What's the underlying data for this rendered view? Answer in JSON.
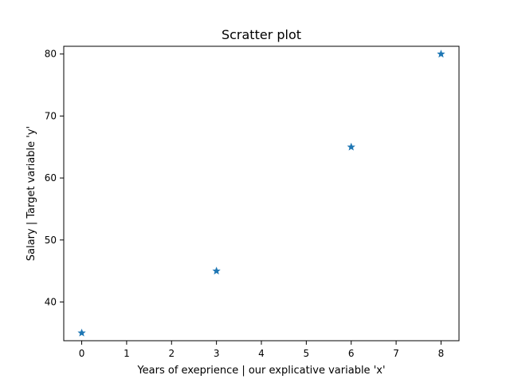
{
  "chart_data": {
    "type": "scatter",
    "title": "Scratter plot",
    "xlabel": "Years of exeprience |  our explicative variable 'x'",
    "ylabel": "Salary | Target variable 'y'",
    "xlim": [
      -0.4,
      8.4
    ],
    "ylim": [
      33.75,
      81.25
    ],
    "xticks": [
      0,
      1,
      2,
      3,
      4,
      5,
      6,
      7,
      8
    ],
    "yticks": [
      40,
      50,
      60,
      70,
      80
    ],
    "grid": false,
    "marker": "star",
    "series": [
      {
        "points": [
          {
            "x": 0,
            "y": 35
          },
          {
            "x": 3,
            "y": 45
          },
          {
            "x": 6,
            "y": 65
          },
          {
            "x": 8,
            "y": 80
          }
        ],
        "color": "#1f77b4"
      }
    ]
  }
}
